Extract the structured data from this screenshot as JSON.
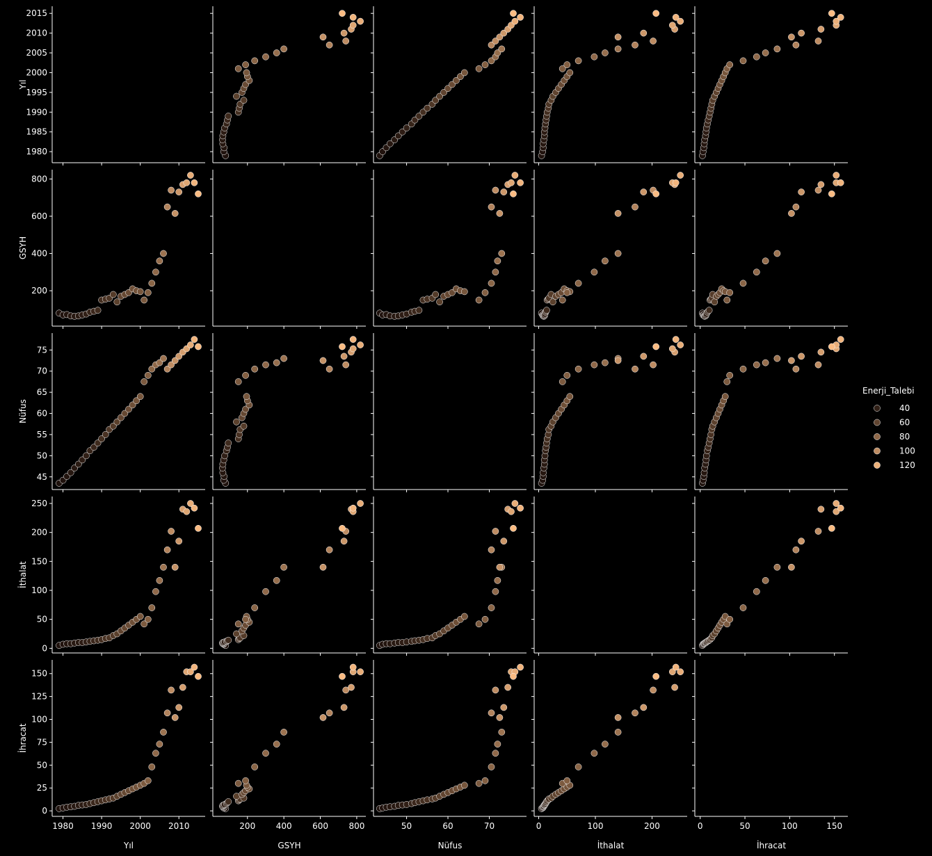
{
  "chart_data": {
    "type": "scatter",
    "subtype": "pairplot",
    "variables": [
      "Yıl",
      "GSYH",
      "Nüfus",
      "İthalat",
      "İhracat"
    ],
    "hue": "Enerji_Talebi",
    "legend": {
      "title": "Enerji_Talebi",
      "entries": [
        {
          "label": "40",
          "value": 40
        },
        {
          "label": "60",
          "value": 60
        },
        {
          "label": "80",
          "value": 80
        },
        {
          "label": "100",
          "value": 100
        },
        {
          "label": "120",
          "value": 120
        }
      ],
      "placement": "right"
    },
    "colors": {
      "background": "#000000",
      "foreground": "#ffffff",
      "hue_low": "#1a0e0a",
      "hue_high": "#ffbf85"
    },
    "axes": {
      "Yıl": {
        "range": [
          1977.2,
          2016.8
        ],
        "ticks": [
          1980,
          1985,
          1990,
          1995,
          2000,
          2005,
          2010,
          2015
        ],
        "ticks_x": [
          1980,
          1990,
          2000,
          2010
        ]
      },
      "GSYH": {
        "range": [
          10,
          850
        ],
        "ticks": [
          200,
          400,
          600,
          800
        ]
      },
      "Nüfus": {
        "range": [
          42,
          79
        ],
        "ticks": [
          45,
          50,
          55,
          60,
          65,
          70,
          75
        ],
        "ticks_x": [
          50,
          60,
          70
        ]
      },
      "İthalat": {
        "range": [
          -8,
          262
        ],
        "ticks": [
          0,
          50,
          100,
          150,
          200,
          250
        ],
        "ticks_x": [
          0,
          100,
          200
        ]
      },
      "İhracat": {
        "range": [
          -6,
          165
        ],
        "ticks": [
          0,
          25,
          50,
          75,
          100,
          125,
          150
        ],
        "ticks_x": [
          0,
          50,
          100,
          150
        ]
      }
    },
    "diagonal": "empty",
    "grid": false,
    "records": [
      [
        1979,
        80,
        43.5,
        5,
        2.5,
        32
      ],
      [
        1980,
        70,
        44.2,
        7,
        3.2,
        33
      ],
      [
        1981,
        72,
        45.1,
        8,
        4,
        34
      ],
      [
        1982,
        65,
        46.0,
        8,
        4.5,
        35
      ],
      [
        1983,
        63,
        47.1,
        9,
        5,
        36
      ],
      [
        1984,
        65,
        48.0,
        10,
        6,
        37
      ],
      [
        1985,
        70,
        49.0,
        10,
        6.5,
        38
      ],
      [
        1986,
        75,
        50.0,
        11,
        7,
        40
      ],
      [
        1987,
        85,
        51.2,
        12,
        8,
        42
      ],
      [
        1988,
        90,
        52.0,
        13,
        9,
        44
      ],
      [
        1989,
        95,
        53.0,
        14,
        10,
        46
      ],
      [
        1990,
        150,
        54.0,
        15,
        11,
        48
      ],
      [
        1991,
        155,
        55.0,
        17,
        12,
        50
      ],
      [
        1992,
        160,
        56.2,
        18,
        13,
        52
      ],
      [
        1993,
        180,
        57.0,
        22,
        14,
        55
      ],
      [
        1994,
        140,
        58.0,
        25,
        16,
        58
      ],
      [
        1995,
        170,
        59.0,
        30,
        18,
        60
      ],
      [
        1996,
        180,
        60.0,
        35,
        20,
        62
      ],
      [
        1997,
        190,
        61.0,
        40,
        22,
        64
      ],
      [
        1998,
        210,
        62.0,
        45,
        24,
        66
      ],
      [
        1999,
        200,
        63.0,
        50,
        26,
        68
      ],
      [
        2000,
        195,
        64.0,
        55,
        28,
        70
      ],
      [
        2001,
        150,
        67.5,
        42,
        30,
        72
      ],
      [
        2002,
        190,
        69.0,
        50,
        33,
        75
      ],
      [
        2003,
        240,
        70.5,
        70,
        48,
        78
      ],
      [
        2004,
        300,
        71.5,
        98,
        63,
        80
      ],
      [
        2005,
        360,
        72.0,
        117,
        73,
        83
      ],
      [
        2006,
        400,
        73.0,
        140,
        86,
        86
      ],
      [
        2007,
        650,
        70.5,
        170,
        107,
        95
      ],
      [
        2008,
        740,
        71.5,
        202,
        132,
        100
      ],
      [
        2009,
        615,
        72.5,
        140,
        102,
        103
      ],
      [
        2010,
        730,
        73.5,
        185,
        113,
        106
      ],
      [
        2011,
        770,
        74.5,
        240,
        135,
        110
      ],
      [
        2012,
        780,
        75.3,
        236,
        152,
        114
      ],
      [
        2013,
        820,
        76.2,
        250,
        152,
        118
      ],
      [
        2014,
        780,
        77.5,
        242,
        157,
        122
      ],
      [
        2015,
        720,
        75.8,
        207,
        147,
        126
      ]
    ]
  }
}
